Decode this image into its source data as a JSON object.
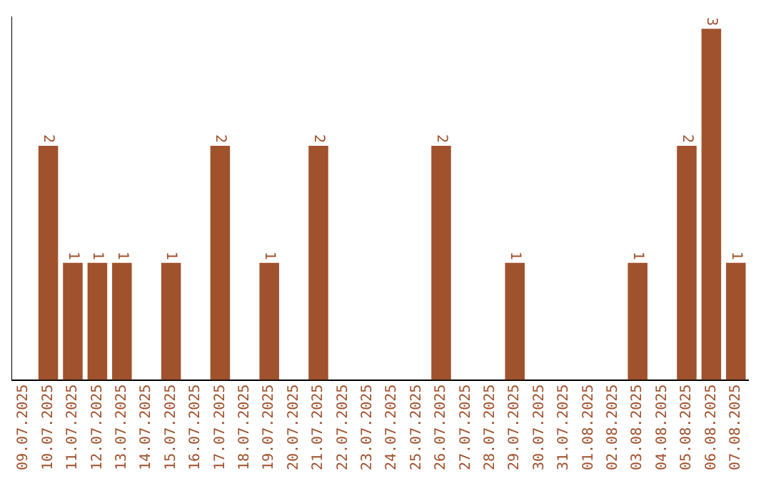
{
  "chart_data": {
    "type": "bar",
    "categories": [
      "09.07.2025",
      "10.07.2025",
      "11.07.2025",
      "12.07.2025",
      "13.07.2025",
      "14.07.2025",
      "15.07.2025",
      "16.07.2025",
      "17.07.2025",
      "18.07.2025",
      "19.07.2025",
      "20.07.2025",
      "21.07.2025",
      "22.07.2025",
      "23.07.2025",
      "24.07.2025",
      "25.07.2025",
      "26.07.2025",
      "27.07.2025",
      "28.07.2025",
      "29.07.2025",
      "30.07.2025",
      "31.07.2025",
      "01.08.2025",
      "02.08.2025",
      "03.08.2025",
      "04.08.2025",
      "05.08.2025",
      "06.08.2025",
      "07.08.2025"
    ],
    "values": [
      0,
      2,
      1,
      1,
      1,
      0,
      1,
      0,
      2,
      0,
      1,
      0,
      2,
      0,
      0,
      0,
      0,
      2,
      0,
      0,
      1,
      0,
      0,
      0,
      0,
      1,
      0,
      2,
      3,
      1
    ],
    "value_labels": [
      null,
      "2",
      "1",
      "1",
      "1",
      null,
      "1",
      null,
      "2",
      null,
      "1",
      null,
      "2",
      null,
      null,
      null,
      null,
      "2",
      null,
      null,
      "1",
      null,
      null,
      null,
      null,
      "1",
      null,
      "2",
      "3",
      "1"
    ],
    "color": "#a0522d",
    "ylim": [
      0,
      3.1
    ],
    "tick_labels": "x",
    "grid": false,
    "legend": false
  }
}
